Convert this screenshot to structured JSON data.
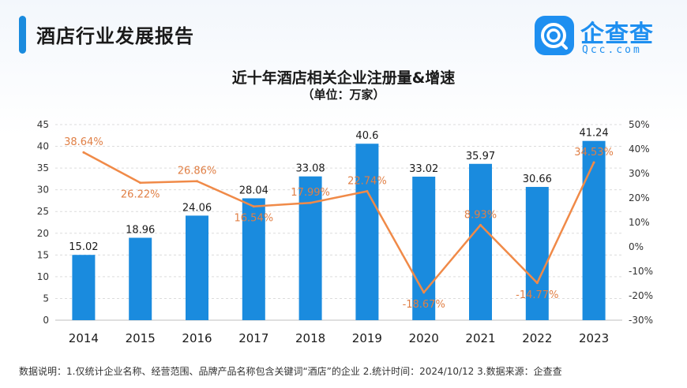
{
  "header": {
    "title": "酒店行业发展报告"
  },
  "logo": {
    "name": "企查查",
    "domain": "Qcc.com",
    "icon": "qcc-logo-icon"
  },
  "footnote": "数据说明：1.仅统计企业名称、经营范围、品牌产品名称包含关键词“酒店”的企业  2.统计时间：2024/10/12   3.数据来源：企查查",
  "colors": {
    "bar": "#1a8bde",
    "line": "#f08a48",
    "line_label": "#e07f45",
    "accent": "#1e8ff0"
  },
  "chart_data": {
    "type": "bar+line",
    "title": "近十年酒店相关企业注册量&增速",
    "subtitle": "（单位：万家）",
    "categories": [
      "2014",
      "2015",
      "2016",
      "2017",
      "2018",
      "2019",
      "2020",
      "2021",
      "2022",
      "2023"
    ],
    "series": [
      {
        "kind": "bar",
        "axis": "left",
        "values": [
          15.02,
          18.96,
          24.06,
          28.04,
          33.08,
          40.6,
          33.02,
          35.97,
          30.66,
          41.24
        ],
        "labels": [
          "15.02",
          "18.96",
          "24.06",
          "28.04",
          "33.08",
          "40.6",
          "33.02",
          "35.97",
          "30.66",
          "41.24"
        ]
      },
      {
        "kind": "line",
        "axis": "right",
        "values": [
          38.64,
          26.22,
          26.86,
          16.54,
          17.99,
          22.74,
          -18.67,
          8.93,
          -14.77,
          34.53
        ],
        "labels": [
          "38.64%",
          "26.22%",
          "26.86%",
          "16.54%",
          "17.99%",
          "22.74%",
          "-18.67%",
          "8.93%",
          "-14.77%",
          "34.53%"
        ]
      }
    ],
    "y_left": {
      "min": 0,
      "max": 45,
      "ticks": [
        "0",
        "5",
        "10",
        "15",
        "20",
        "25",
        "30",
        "35",
        "40",
        "45"
      ]
    },
    "y_right": {
      "min": -30,
      "max": 50,
      "ticks": [
        "-30%",
        "-20%",
        "-10%",
        "0%",
        "10%",
        "20%",
        "30%",
        "40%",
        "50%"
      ]
    },
    "grid": "horizontal-dashed",
    "legend": "none"
  }
}
